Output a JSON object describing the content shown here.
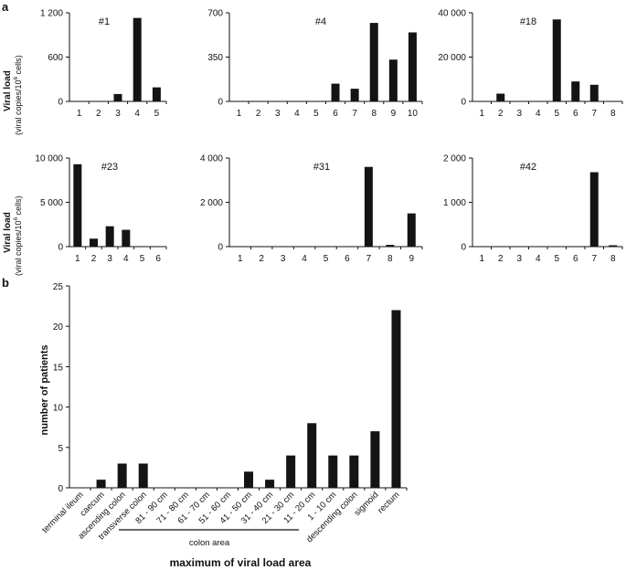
{
  "panel_labels": {
    "a": "a",
    "b": "b"
  },
  "panel_a": {
    "ylabel_top": {
      "title": "Viral load",
      "units": "(viral copies/10",
      "exponent": "6",
      "suffix": " cells)"
    },
    "ylabel_bottom": {
      "title": "Viral load",
      "units": "(viral copies/10",
      "exponent": "6",
      "suffix": " cells)"
    }
  },
  "panel_b_extra": {
    "bracket_label": "colon area"
  },
  "chart_data": [
    {
      "type": "bar",
      "title": "#1",
      "categories": [
        "1",
        "2",
        "3",
        "4",
        "5"
      ],
      "values": [
        0,
        0,
        100,
        1130,
        190
      ],
      "ylim": [
        0,
        1200
      ],
      "yticks": [
        "0",
        "600",
        "1 200"
      ]
    },
    {
      "type": "bar",
      "title": "#4",
      "categories": [
        "1",
        "2",
        "3",
        "4",
        "5",
        "6",
        "7",
        "8",
        "9",
        "10"
      ],
      "values": [
        0,
        0,
        0,
        0,
        0,
        140,
        100,
        620,
        330,
        545
      ],
      "ylim": [
        0,
        700
      ],
      "yticks": [
        "0",
        "350",
        "700"
      ]
    },
    {
      "type": "bar",
      "title": "#18",
      "categories": [
        "1",
        "2",
        "3",
        "4",
        "5",
        "6",
        "7",
        "8"
      ],
      "values": [
        0,
        3500,
        0,
        0,
        37000,
        9000,
        7500,
        0
      ],
      "ylim": [
        0,
        40000
      ],
      "yticks": [
        "0",
        "20 000",
        "40 000"
      ]
    },
    {
      "type": "bar",
      "title": "#23",
      "categories": [
        "1",
        "2",
        "3",
        "4",
        "5",
        "6"
      ],
      "values": [
        9300,
        900,
        2300,
        1900,
        0,
        0
      ],
      "ylim": [
        0,
        10000
      ],
      "yticks": [
        "0",
        "5 000",
        "10 000"
      ]
    },
    {
      "type": "bar",
      "title": "#31",
      "categories": [
        "1",
        "2",
        "3",
        "4",
        "5",
        "6",
        "7",
        "8",
        "9"
      ],
      "values": [
        0,
        0,
        0,
        0,
        0,
        0,
        3600,
        80,
        1500
      ],
      "ylim": [
        0,
        4000
      ],
      "yticks": [
        "0",
        "2 000",
        "4 000"
      ]
    },
    {
      "type": "bar",
      "title": "#42",
      "categories": [
        "1",
        "2",
        "3",
        "4",
        "5",
        "6",
        "7",
        "8"
      ],
      "values": [
        0,
        0,
        0,
        0,
        0,
        0,
        1680,
        20
      ],
      "ylim": [
        0,
        2000
      ],
      "yticks": [
        "0",
        "1 000",
        "2 000"
      ]
    },
    {
      "type": "bar",
      "title": "",
      "xlabel": "maximum of viral load area",
      "ylabel": "number of patients",
      "categories": [
        "terminal ileum",
        "caecum",
        "ascending colon",
        "transverse colon",
        "81 - 90 cm",
        "71 - 80 cm",
        "61 - 70 cm",
        "51 - 60 cm",
        "41 - 50 cm",
        "31 - 40 cm",
        "21 - 30 cm",
        "11 - 20 cm",
        "1 - 10 cm",
        "descending colon",
        "sigmoid",
        "rectum"
      ],
      "values": [
        0,
        1,
        3,
        3,
        0,
        0,
        0,
        0,
        2,
        1,
        4,
        8,
        4,
        4,
        7,
        22
      ],
      "ylim": [
        0,
        25
      ],
      "yticks": [
        "0",
        "5",
        "10",
        "15",
        "20",
        "25"
      ]
    }
  ]
}
